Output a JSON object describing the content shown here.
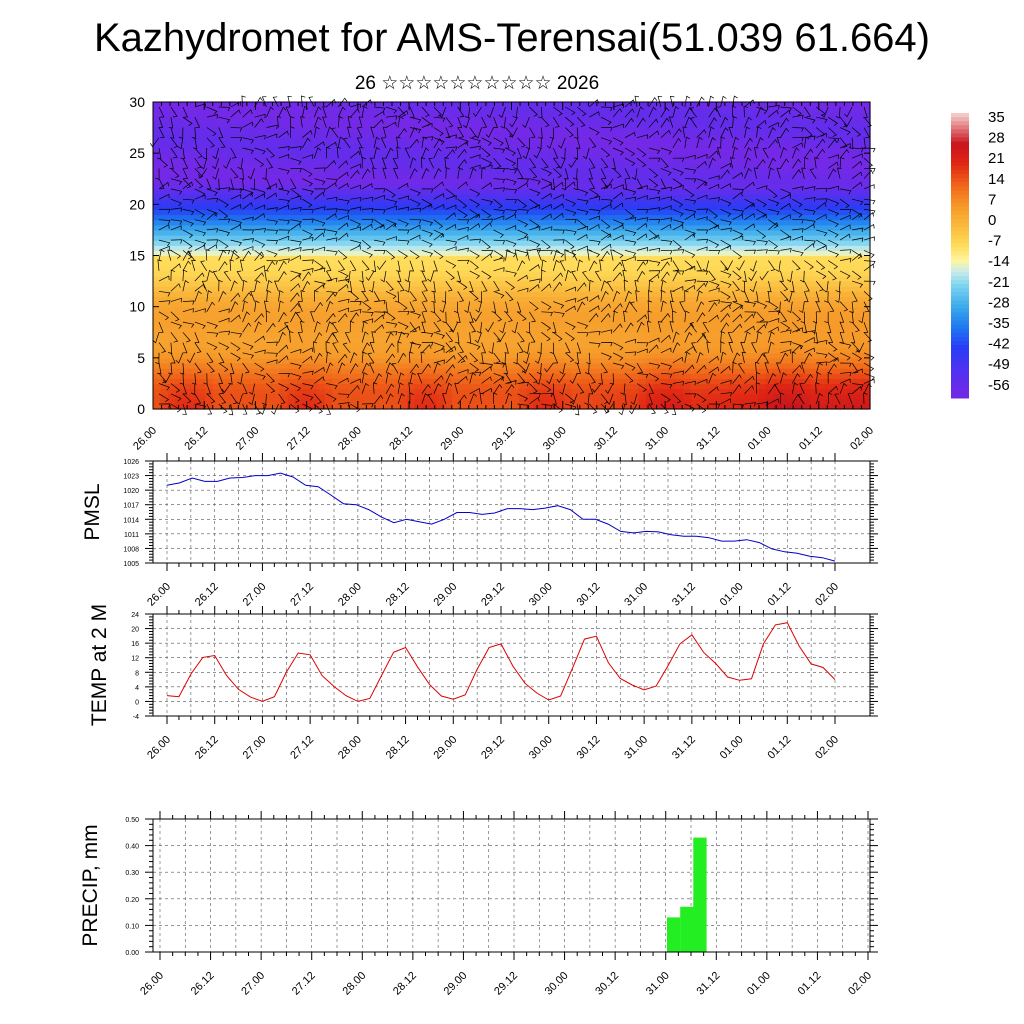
{
  "title": "Kazhydromet for AMS-Terensai(51.039 61.664)",
  "subtitle": "26 ☆☆☆☆☆☆☆☆☆☆ 2026",
  "time_labels": [
    "26.00",
    "26.12",
    "27.00",
    "27.12",
    "28.00",
    "28.12",
    "29.00",
    "29.12",
    "30.00",
    "30.12",
    "31.00",
    "31.12",
    "01.00",
    "01.12",
    "02.00"
  ],
  "chart_data": [
    {
      "type": "heatmap",
      "title": "Temperature and wind cross-section",
      "x": [
        "26.00",
        "26.12",
        "27.00",
        "27.12",
        "28.00",
        "28.12",
        "29.00",
        "29.12",
        "30.00",
        "30.12",
        "31.00",
        "31.12",
        "01.00",
        "01.12",
        "02.00"
      ],
      "y_levels": [
        0,
        2,
        4,
        6,
        8,
        10,
        12,
        14,
        16,
        18,
        20,
        22,
        24,
        26,
        28,
        30
      ],
      "ylim": [
        0,
        30
      ],
      "y_ticks": [
        "0",
        "5",
        "10",
        "15",
        "20",
        "25",
        "30"
      ],
      "colorbar": {
        "levels": [
          "35",
          "28",
          "21",
          "14",
          "7",
          "0",
          "-7",
          "-14",
          "-21",
          "-28",
          "-35",
          "-42",
          "-49",
          "-56"
        ],
        "range": [
          -60,
          38
        ]
      },
      "overlay": "wind barbs"
    },
    {
      "type": "line",
      "ylabel": "PMSL",
      "ylim": [
        1005,
        1026
      ],
      "y_ticks": [
        "1026",
        "1023",
        "1020",
        "1017",
        "1014",
        "1011",
        "1008",
        "1005"
      ],
      "color": "#0000cc",
      "values": [
        1021,
        1021.5,
        1022.5,
        1021.8,
        1021.8,
        1022.5,
        1022.6,
        1023,
        1023,
        1023.5,
        1022.7,
        1021,
        1020.7,
        1019,
        1017.2,
        1017,
        1016,
        1014.5,
        1013.3,
        1014,
        1013.5,
        1013,
        1014,
        1015.4,
        1015.4,
        1015,
        1015.3,
        1016.2,
        1016.2,
        1016,
        1016.3,
        1016.8,
        1016,
        1014,
        1014,
        1013,
        1011.5,
        1011.2,
        1011.5,
        1011.4,
        1010.8,
        1010.5,
        1010.5,
        1010.2,
        1009.5,
        1009.5,
        1009.8,
        1009.2,
        1007.9,
        1007.3,
        1007,
        1006.4,
        1006.1,
        1005.4
      ]
    },
    {
      "type": "line",
      "ylabel": "TEMP at 2 M",
      "ylim": [
        -4,
        24
      ],
      "y_ticks": [
        "24",
        "20",
        "16",
        "12",
        "8",
        "4",
        "0",
        "-4"
      ],
      "color": "#dd0000",
      "values": [
        1.6,
        1.3,
        7.5,
        12.1,
        12.6,
        7.1,
        3.3,
        1.2,
        0,
        1.3,
        8,
        13.3,
        12.8,
        7.1,
        4.1,
        1.6,
        0,
        0.8,
        7.2,
        13.5,
        14.8,
        9.5,
        4.7,
        1.5,
        0.6,
        1.8,
        8.8,
        14.8,
        15.8,
        9.7,
        5,
        2.3,
        0.4,
        1.5,
        9.2,
        17.1,
        17.9,
        10.6,
        6.3,
        4.5,
        3.2,
        4.2,
        9.8,
        15.8,
        18.3,
        13.4,
        10.4,
        6.7,
        5.8,
        6.2,
        15.8,
        21,
        21.6,
        15.2,
        10.3,
        9.3,
        6
      ]
    },
    {
      "type": "bar",
      "ylabel": "PRECIP, mm",
      "ylim": [
        0,
        0.5
      ],
      "y_ticks": [
        "0.50",
        "0.40",
        "0.30",
        "0.20",
        "0.10",
        "0.00"
      ],
      "color": "#22ee22",
      "bars": [
        {
          "t": "31.00 +03h",
          "value": 0.13
        },
        {
          "t": "31.00 +06h",
          "value": 0.17
        },
        {
          "t": "31.00 +09h",
          "value": 0.43
        }
      ]
    }
  ]
}
